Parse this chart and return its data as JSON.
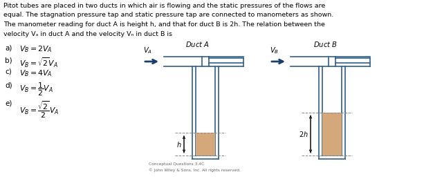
{
  "background_color": "#ffffff",
  "text_color": "#000000",
  "duct_border_color": "#2e5f8a",
  "duct_fill_color": "#d4a87a",
  "arrow_color": "#1a3f6f",
  "dashed_color": "#888888",
  "lw": 1.2,
  "para_lines": [
    "Pitot tubes are placed in two ducts in which air is flowing and the static pressures of the flows are",
    "equal. The stagnation pressure tap and static pressure tap are connected to manometers as shown.",
    "The manometer reading for duct A is height h, and that for duct B is 2h. The relation between the",
    "velocity Vₐ in duct A and the velocity Vₙ in duct B is"
  ],
  "opt_labels": [
    "a)",
    "b)",
    "c)",
    "d)",
    "e)"
  ],
  "opt_formulas": [
    "$V_B = 2V_A$",
    "$V_B = \\sqrt{2}V_A$",
    "$V_B = 4V_A$",
    "$V_B = \\dfrac{1}{2}V_A$",
    "$V_B = \\dfrac{\\sqrt{2}}{2}V_A$"
  ],
  "opt_y": [
    64,
    82,
    99,
    118,
    145
  ],
  "copyright1": "Conceptual Questions 3.4C",
  "copyright2": "© John Wiley & Sons, Inc. All rights reserved."
}
